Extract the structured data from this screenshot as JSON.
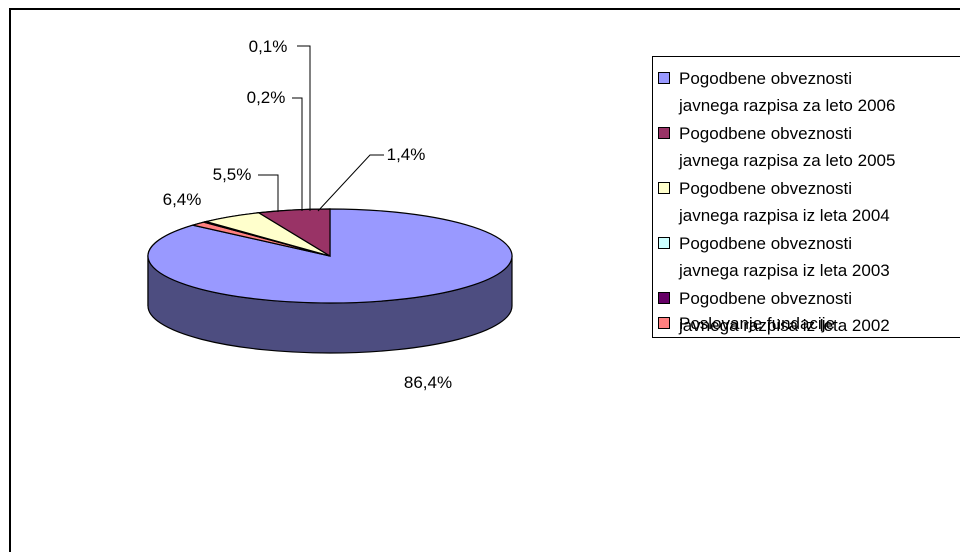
{
  "chart_data": {
    "type": "pie",
    "title": "",
    "categories": [
      "Pogodbene obveznosti javnega razpisa za leto 2006",
      "Pogodbene obveznosti javnega razpisa za leto 2005",
      "Pogodbene obveznosti javnega razpisa iz leta 2004",
      "Pogodbene obveznosti javnega razpisa iz leta 2003",
      "Pogodbene obveznosti javnega razpisa iz leta 2002",
      "Poslovanje fundacije"
    ],
    "values": [
      86.4,
      6.4,
      5.5,
      0.2,
      0.1,
      1.4
    ],
    "data_labels": [
      "86,4%",
      "6,4%",
      "5,5%",
      "0,2%",
      "0,1%",
      "1,4%"
    ],
    "colors": [
      "#9999ff",
      "#993366",
      "#ffffcc",
      "#ccffff",
      "#660066",
      "#ff8080"
    ],
    "style": "3d-pie",
    "legend_position": "right"
  },
  "legend": {
    "items": [
      {
        "label": "Pogodbene obveznosti\njavnega razpisa za leto 2006",
        "color": "#9999ff"
      },
      {
        "label": "Pogodbene obveznosti\njavnega razpisa za leto 2005",
        "color": "#993366"
      },
      {
        "label": "Pogodbene obveznosti\njavnega razpisa iz leta 2004",
        "color": "#ffffcc"
      },
      {
        "label": "Pogodbene obveznosti\njavnega razpisa iz leta 2003",
        "color": "#ccffff"
      },
      {
        "label": "Pogodbene obveznosti\njavnega razpisa iz leta 2002",
        "color": "#660066"
      },
      {
        "label": "Poslovanje fundacije",
        "color": "#ff8080"
      }
    ]
  }
}
